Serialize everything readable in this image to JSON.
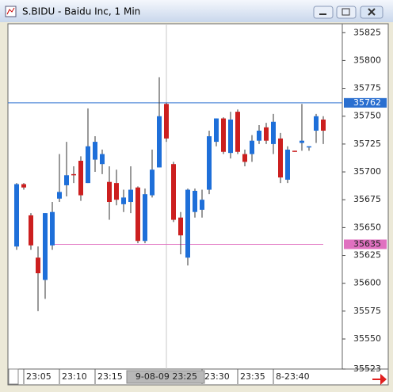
{
  "window_title": "S.BIDU - Baidu Inc, 1 Min",
  "chart_data": {
    "type": "candlestick",
    "open": [
      35633,
      35689,
      35661,
      35623,
      35603,
      35634,
      35676,
      35688,
      35698,
      35710,
      35690,
      35711,
      35707,
      35691,
      35690,
      35671,
      35673,
      35686,
      35638,
      35679,
      35704,
      35761,
      35707,
      35659,
      35623,
      35664,
      35666,
      35684,
      35727,
      35748,
      35717,
      35754,
      35716,
      35716,
      35728,
      35740,
      35725,
      35730,
      35693,
      35719,
      35726,
      35722,
      35737,
      35747
    ],
    "high": [
      35690,
      35690,
      35663,
      35633,
      35663,
      35673,
      35716,
      35727,
      35705,
      35714,
      35757,
      35732,
      35720,
      35705,
      35702,
      35684,
      35705,
      35687,
      35685,
      35720,
      35785,
      35762,
      35709,
      35664,
      35685,
      35685,
      35684,
      35737,
      35748,
      35749,
      35754,
      35756,
      35720,
      35733,
      35742,
      35744,
      35752,
      35735,
      35723,
      35719,
      35761,
      35723,
      35752,
      35750
    ],
    "low": [
      35630,
      35684,
      35630,
      35575,
      35586,
      35630,
      35673,
      35678,
      35690,
      35674,
      35690,
      35700,
      35698,
      35657,
      35670,
      35664,
      35663,
      35636,
      35636,
      35677,
      35704,
      35727,
      35655,
      35626,
      35616,
      35659,
      35659,
      35680,
      35723,
      35716,
      35712,
      35716,
      35705,
      35709,
      35725,
      35725,
      35716,
      35690,
      35690,
      35718,
      35719,
      35719,
      35726,
      35725
    ],
    "close": [
      35689,
      35686,
      35634,
      35609,
      35663,
      35664,
      35682,
      35697,
      35697,
      35679,
      35723,
      35727,
      35716,
      35673,
      35675,
      35677,
      35684,
      35638,
      35680,
      35702,
      35750,
      35730,
      35657,
      35643,
      35684,
      35683,
      35675,
      35732,
      35748,
      35718,
      35747,
      35718,
      35709,
      35728,
      35737,
      35728,
      35745,
      35695,
      35720,
      35718,
      35728,
      35723,
      35750,
      35737
    ],
    "up_color": "#1e6fd9",
    "down_color": "#cc1f1f",
    "ylim": [
      35523,
      35833
    ],
    "yticks": [
      35523,
      35550,
      35575,
      35600,
      35625,
      35650,
      35675,
      35700,
      35725,
      35750,
      35775,
      35800,
      35825
    ],
    "xticks": [
      {
        "value": 1,
        "label": "23:05"
      },
      {
        "value": 6,
        "label": "23:10"
      },
      {
        "value": 11,
        "label": "23:15"
      },
      {
        "value": 26,
        "label": "23:30"
      },
      {
        "value": 31,
        "label": "23:35"
      },
      {
        "value": 36,
        "label": "8-23:40"
      }
    ],
    "crosshair": {
      "value": 21,
      "label": "9-08-09 23:25"
    },
    "hlines": [
      {
        "value": 35762,
        "color": "#2a6fd0"
      },
      {
        "value": 35635,
        "color": "#e070c0"
      }
    ]
  }
}
